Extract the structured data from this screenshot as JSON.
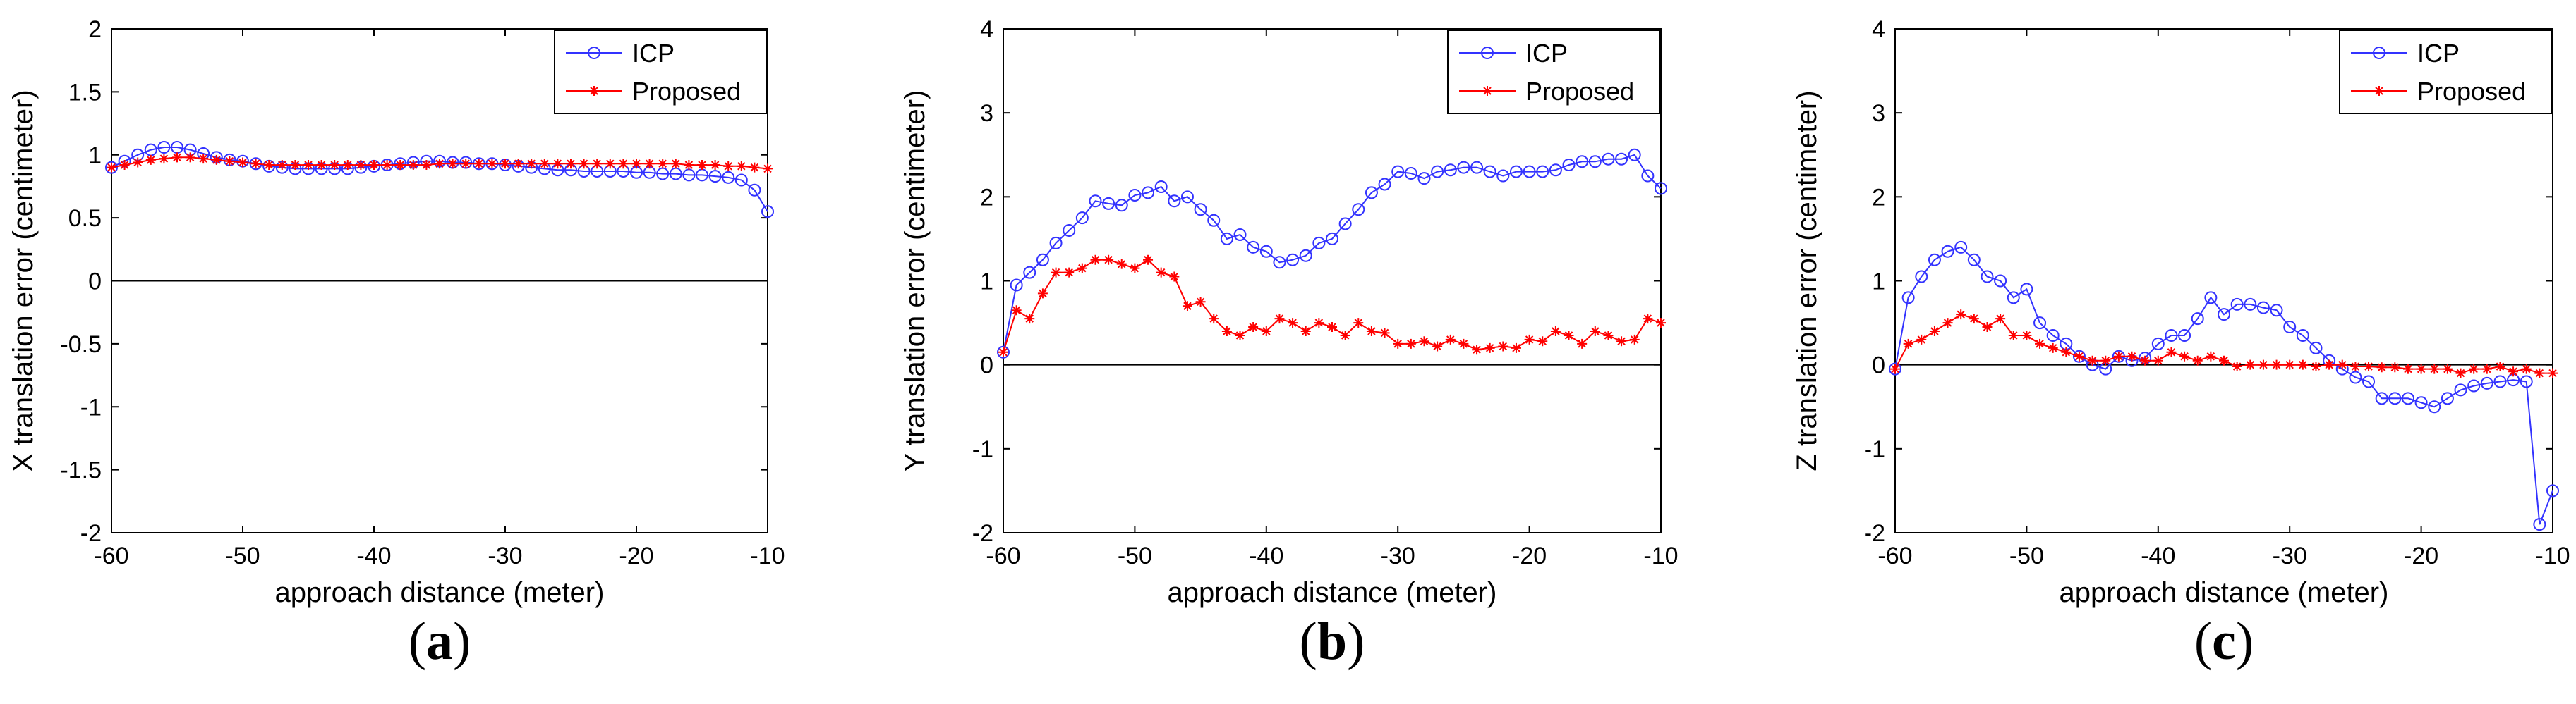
{
  "chart_data": [
    {
      "type": "line",
      "panel_label": "a",
      "xlabel": "approach distance (meter)",
      "ylabel": "X translation error (centimeter)",
      "xlim": [
        -60,
        -10
      ],
      "ylim": [
        -2,
        2
      ],
      "xticks": [
        -60,
        -50,
        -40,
        -30,
        -20,
        -10
      ],
      "yticks": [
        -2,
        -1.5,
        -1,
        -0.5,
        0,
        0.5,
        1,
        1.5,
        2
      ],
      "ytick_labels": [
        "-2",
        "-1.5",
        "-1",
        "-0.5",
        "0",
        "0.5",
        "1",
        "1.5",
        "2"
      ],
      "zero_line": true,
      "legend": "top-right",
      "x": [
        -60,
        -59,
        -58,
        -57,
        -56,
        -55,
        -54,
        -53,
        -52,
        -51,
        -50,
        -49,
        -48,
        -47,
        -46,
        -45,
        -44,
        -43,
        -42,
        -41,
        -40,
        -39,
        -38,
        -37,
        -36,
        -35,
        -34,
        -33,
        -32,
        -31,
        -30,
        -29,
        -28,
        -27,
        -26,
        -25,
        -24,
        -23,
        -22,
        -21,
        -20,
        -19,
        -18,
        -17,
        -16,
        -15,
        -14,
        -13,
        -12,
        -11,
        -10
      ],
      "series": [
        {
          "name": "ICP",
          "color": "#3333ff",
          "marker": "circle",
          "values": [
            0.9,
            0.95,
            1.0,
            1.04,
            1.06,
            1.06,
            1.04,
            1.01,
            0.98,
            0.96,
            0.95,
            0.93,
            0.91,
            0.9,
            0.89,
            0.89,
            0.89,
            0.89,
            0.89,
            0.9,
            0.91,
            0.92,
            0.93,
            0.94,
            0.95,
            0.95,
            0.94,
            0.94,
            0.93,
            0.93,
            0.92,
            0.91,
            0.9,
            0.89,
            0.88,
            0.88,
            0.87,
            0.87,
            0.87,
            0.87,
            0.86,
            0.86,
            0.85,
            0.85,
            0.84,
            0.84,
            0.83,
            0.82,
            0.8,
            0.72,
            0.55
          ]
        },
        {
          "name": "Proposed",
          "color": "#ff0000",
          "marker": "star",
          "values": [
            0.9,
            0.92,
            0.94,
            0.96,
            0.97,
            0.98,
            0.98,
            0.97,
            0.96,
            0.95,
            0.94,
            0.93,
            0.92,
            0.92,
            0.92,
            0.92,
            0.92,
            0.92,
            0.92,
            0.92,
            0.92,
            0.92,
            0.92,
            0.92,
            0.92,
            0.93,
            0.93,
            0.93,
            0.93,
            0.93,
            0.93,
            0.93,
            0.93,
            0.93,
            0.93,
            0.93,
            0.93,
            0.93,
            0.93,
            0.93,
            0.93,
            0.93,
            0.93,
            0.93,
            0.92,
            0.92,
            0.92,
            0.91,
            0.91,
            0.9,
            0.89
          ]
        }
      ]
    },
    {
      "type": "line",
      "panel_label": "b",
      "xlabel": "approach distance (meter)",
      "ylabel": "Y translation error (centimeter)",
      "xlim": [
        -60,
        -10
      ],
      "ylim": [
        -2,
        4
      ],
      "xticks": [
        -60,
        -50,
        -40,
        -30,
        -20,
        -10
      ],
      "yticks": [
        -2,
        -1,
        0,
        1,
        2,
        3,
        4
      ],
      "ytick_labels": [
        "-2",
        "-1",
        "0",
        "1",
        "2",
        "3",
        "4"
      ],
      "zero_line": true,
      "legend": "top-right",
      "x": [
        -60,
        -59,
        -58,
        -57,
        -56,
        -55,
        -54,
        -53,
        -52,
        -51,
        -50,
        -49,
        -48,
        -47,
        -46,
        -45,
        -44,
        -43,
        -42,
        -41,
        -40,
        -39,
        -38,
        -37,
        -36,
        -35,
        -34,
        -33,
        -32,
        -31,
        -30,
        -29,
        -28,
        -27,
        -26,
        -25,
        -24,
        -23,
        -22,
        -21,
        -20,
        -19,
        -18,
        -17,
        -16,
        -15,
        -14,
        -13,
        -12,
        -11,
        -10
      ],
      "series": [
        {
          "name": "ICP",
          "color": "#3333ff",
          "marker": "circle",
          "values": [
            0.15,
            0.95,
            1.1,
            1.25,
            1.45,
            1.6,
            1.75,
            1.95,
            1.92,
            1.9,
            2.02,
            2.05,
            2.12,
            1.95,
            2.0,
            1.85,
            1.72,
            1.5,
            1.55,
            1.4,
            1.35,
            1.22,
            1.25,
            1.3,
            1.45,
            1.5,
            1.68,
            1.85,
            2.05,
            2.15,
            2.3,
            2.28,
            2.22,
            2.3,
            2.32,
            2.35,
            2.35,
            2.3,
            2.25,
            2.3,
            2.3,
            2.3,
            2.32,
            2.38,
            2.42,
            2.42,
            2.45,
            2.45,
            2.5,
            2.25,
            2.1
          ]
        },
        {
          "name": "Proposed",
          "color": "#ff0000",
          "marker": "star",
          "values": [
            0.15,
            0.65,
            0.55,
            0.85,
            1.1,
            1.1,
            1.15,
            1.25,
            1.25,
            1.2,
            1.15,
            1.25,
            1.1,
            1.05,
            0.7,
            0.75,
            0.55,
            0.4,
            0.35,
            0.45,
            0.4,
            0.55,
            0.5,
            0.4,
            0.5,
            0.45,
            0.35,
            0.5,
            0.4,
            0.38,
            0.25,
            0.25,
            0.28,
            0.22,
            0.3,
            0.25,
            0.18,
            0.2,
            0.22,
            0.2,
            0.3,
            0.28,
            0.4,
            0.35,
            0.25,
            0.4,
            0.35,
            0.28,
            0.3,
            0.55,
            0.5
          ]
        }
      ]
    },
    {
      "type": "line",
      "panel_label": "c",
      "xlabel": "approach distance (meter)",
      "ylabel": "Z translation error (centimeter)",
      "xlim": [
        -60,
        -10
      ],
      "ylim": [
        -2,
        4
      ],
      "xticks": [
        -60,
        -50,
        -40,
        -30,
        -20,
        -10
      ],
      "yticks": [
        -2,
        -1,
        0,
        1,
        2,
        3,
        4
      ],
      "ytick_labels": [
        "-2",
        "-1",
        "0",
        "1",
        "2",
        "3",
        "4"
      ],
      "zero_line": true,
      "legend": "top-right",
      "x": [
        -60,
        -59,
        -58,
        -57,
        -56,
        -55,
        -54,
        -53,
        -52,
        -51,
        -50,
        -49,
        -48,
        -47,
        -46,
        -45,
        -44,
        -43,
        -42,
        -41,
        -40,
        -39,
        -38,
        -37,
        -36,
        -35,
        -34,
        -33,
        -32,
        -31,
        -30,
        -29,
        -28,
        -27,
        -26,
        -25,
        -24,
        -23,
        -22,
        -21,
        -20,
        -19,
        -18,
        -17,
        -16,
        -15,
        -14,
        -13,
        -12,
        -11,
        -10
      ],
      "series": [
        {
          "name": "ICP",
          "color": "#3333ff",
          "marker": "circle",
          "values": [
            -0.05,
            0.8,
            1.05,
            1.25,
            1.35,
            1.4,
            1.25,
            1.05,
            1.0,
            0.8,
            0.9,
            0.5,
            0.35,
            0.25,
            0.1,
            0.0,
            -0.05,
            0.1,
            0.05,
            0.08,
            0.25,
            0.35,
            0.35,
            0.55,
            0.8,
            0.6,
            0.72,
            0.72,
            0.68,
            0.65,
            0.45,
            0.35,
            0.2,
            0.05,
            -0.05,
            -0.15,
            -0.2,
            -0.4,
            -0.4,
            -0.4,
            -0.45,
            -0.5,
            -0.4,
            -0.3,
            -0.25,
            -0.22,
            -0.2,
            -0.18,
            -0.2,
            -1.9,
            -1.5
          ]
        },
        {
          "name": "Proposed",
          "color": "#ff0000",
          "marker": "star",
          "values": [
            -0.05,
            0.25,
            0.3,
            0.4,
            0.5,
            0.6,
            0.55,
            0.45,
            0.55,
            0.35,
            0.35,
            0.25,
            0.2,
            0.15,
            0.1,
            0.05,
            0.05,
            0.1,
            0.1,
            0.05,
            0.05,
            0.15,
            0.1,
            0.05,
            0.1,
            0.05,
            -0.02,
            0.0,
            0.0,
            0.0,
            0.0,
            0.0,
            -0.02,
            0.0,
            0.0,
            -0.02,
            -0.02,
            -0.03,
            -0.03,
            -0.05,
            -0.05,
            -0.05,
            -0.05,
            -0.1,
            -0.05,
            -0.05,
            -0.02,
            -0.08,
            -0.05,
            -0.1,
            -0.1
          ]
        }
      ]
    }
  ]
}
